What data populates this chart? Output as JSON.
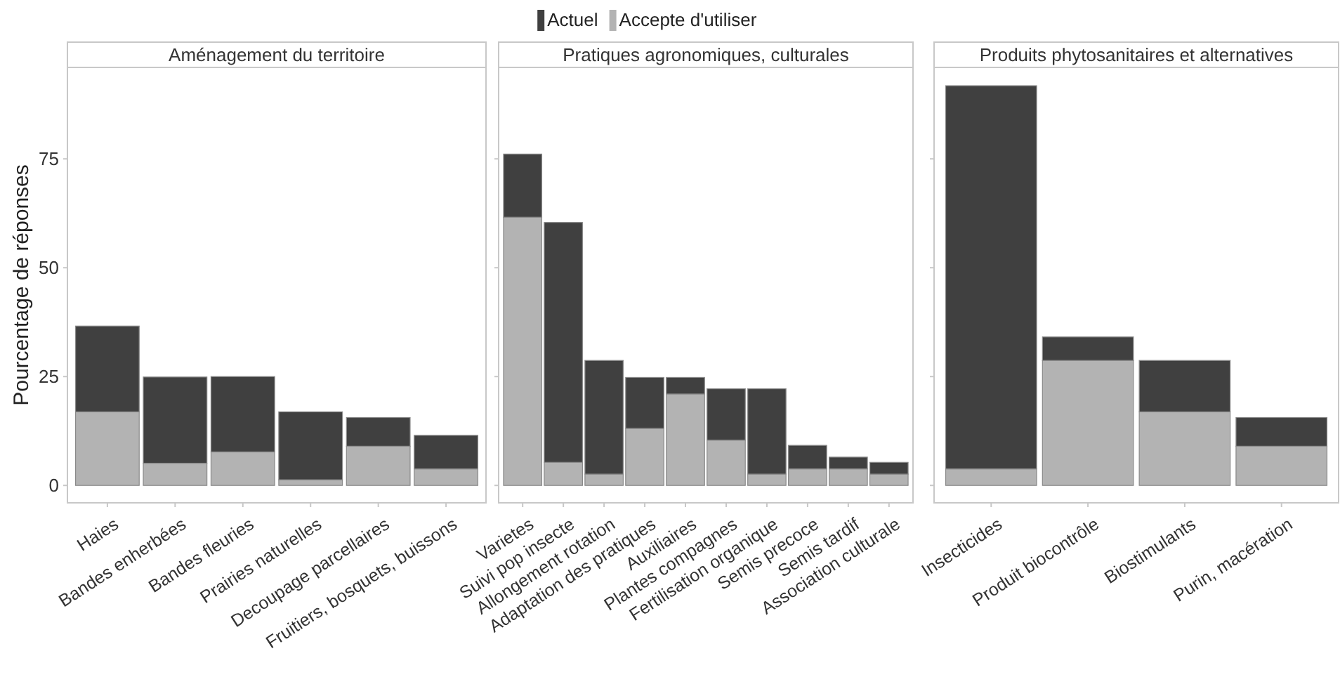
{
  "chart_data": [
    {
      "type": "bar",
      "title": "Aménagement du territoire",
      "ylabel": "Pourcentage de réponses",
      "categories": [
        "Haies",
        "Bandes enherbées",
        "Bandes fleuries",
        "Prairies naturelles",
        "Decoupage parcellaires",
        "Fruitiers, bosquets, buissons"
      ],
      "stacked": true,
      "ylim": [
        -4,
        96
      ],
      "yticks": [
        0,
        25,
        50,
        75
      ],
      "legend": "top",
      "tick_labels": "xy",
      "series": [
        {
          "name": "Accepte d'utiliser",
          "color": "#b3b3b3",
          "values": [
            16.9,
            5.1,
            7.7,
            1.3,
            9.0,
            3.8
          ]
        },
        {
          "name": "Actuel",
          "color": "#404040",
          "values": [
            19.7,
            19.8,
            17.3,
            15.6,
            6.6,
            7.7
          ]
        }
      ]
    },
    {
      "type": "bar",
      "title": "Pratiques agronomiques, culturales",
      "categories": [
        "Varietes",
        "Suivi pop insecte",
        "Allongement rotation",
        "Adaptation des pratiques",
        "Auxiliaires",
        "Plantes compagnes",
        "Fertilisation organique",
        "Semis precoce",
        "Semis tardif",
        "Association culturale"
      ],
      "stacked": true,
      "ylim": [
        -4,
        96
      ],
      "yticks": [
        0,
        25,
        50,
        75
      ],
      "tick_labels": "x",
      "series": [
        {
          "color": "#b3b3b3",
          "values": [
            61.6,
            5.3,
            2.6,
            13.1,
            21.0,
            10.4,
            2.6,
            3.8,
            3.8,
            2.6
          ]
        },
        {
          "color": "#404040",
          "values": [
            14.5,
            55.1,
            26.1,
            11.7,
            3.8,
            11.8,
            19.6,
            5.4,
            2.7,
            2.7
          ]
        }
      ]
    },
    {
      "type": "bar",
      "title": "Produits phytosanitaires et alternatives",
      "categories": [
        "Insecticides",
        "Produit biocontrôle",
        "Biostimulants",
        "Purin, macération"
      ],
      "stacked": true,
      "ylim": [
        -4,
        96
      ],
      "yticks": [
        0,
        25,
        50,
        75
      ],
      "tick_labels": "x",
      "series": [
        {
          "color": "#b3b3b3",
          "values": [
            3.8,
            28.7,
            16.9,
            9.0
          ]
        },
        {
          "color": "#404040",
          "values": [
            88.0,
            5.4,
            11.8,
            6.6
          ]
        }
      ]
    }
  ]
}
